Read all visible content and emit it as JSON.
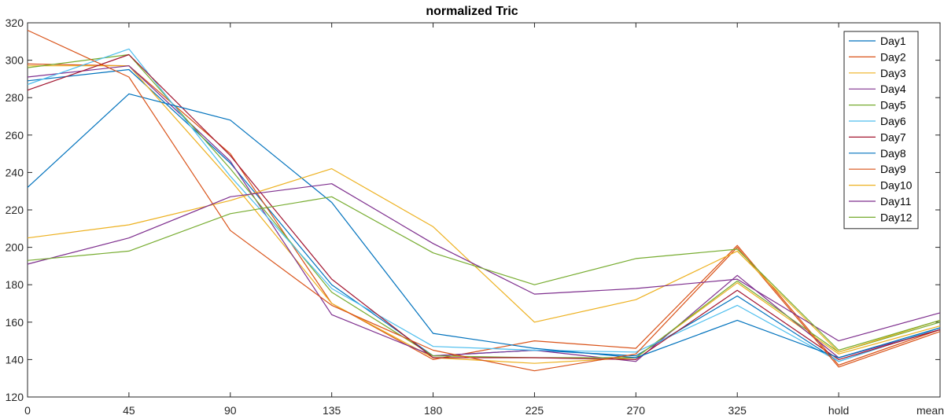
{
  "chart_data": {
    "type": "line",
    "title": "normalized Tric",
    "xlabel": "",
    "ylabel": "",
    "categories": [
      "0",
      "45",
      "90",
      "135",
      "180",
      "225",
      "270",
      "325",
      "hold",
      "mean"
    ],
    "yticks": [
      120,
      140,
      160,
      180,
      200,
      220,
      240,
      260,
      280,
      300,
      320
    ],
    "ylim": [
      120,
      320
    ],
    "grid": false,
    "legend_position": "top-right",
    "series": [
      {
        "name": "Day1",
        "color": "#0072BD",
        "values": [
          289,
          295,
          245,
          180,
          142,
          145,
          142,
          174,
          139,
          157
        ]
      },
      {
        "name": "Day2",
        "color": "#D95319",
        "values": [
          298,
          297,
          250,
          170,
          140,
          150,
          146,
          201,
          137,
          156
        ]
      },
      {
        "name": "Day3",
        "color": "#EDB120",
        "values": [
          297,
          297,
          236,
          170,
          141,
          138,
          141,
          181,
          143,
          158
        ]
      },
      {
        "name": "Day4",
        "color": "#7E2F8E",
        "values": [
          291,
          297,
          246,
          164,
          142,
          145,
          139,
          185,
          141,
          156
        ]
      },
      {
        "name": "Day5",
        "color": "#77AC30",
        "values": [
          296,
          303,
          242,
          176,
          142,
          141,
          141,
          182,
          144,
          160
        ]
      },
      {
        "name": "Day6",
        "color": "#4DBEEE",
        "values": [
          287,
          306,
          238,
          178,
          147,
          145,
          144,
          169,
          139,
          157
        ]
      },
      {
        "name": "Day7",
        "color": "#A2142F",
        "values": [
          284,
          303,
          249,
          183,
          141,
          141,
          140,
          177,
          140,
          156
        ]
      },
      {
        "name": "Day8",
        "color": "#0072BD",
        "values": [
          232,
          282,
          268,
          224,
          154,
          146,
          141,
          161,
          141,
          157
        ]
      },
      {
        "name": "Day9",
        "color": "#D95319",
        "values": [
          316,
          291,
          209,
          169,
          145,
          134,
          143,
          200,
          136,
          155
        ]
      },
      {
        "name": "Day10",
        "color": "#EDB120",
        "values": [
          205,
          212,
          225,
          242,
          211,
          160,
          172,
          198,
          144,
          161
        ]
      },
      {
        "name": "Day11",
        "color": "#7E2F8E",
        "values": [
          191,
          205,
          227,
          234,
          202,
          175,
          178,
          183,
          150,
          165
        ]
      },
      {
        "name": "Day12",
        "color": "#77AC30",
        "values": [
          193,
          198,
          218,
          227,
          197,
          180,
          194,
          199,
          145,
          161
        ]
      }
    ]
  }
}
